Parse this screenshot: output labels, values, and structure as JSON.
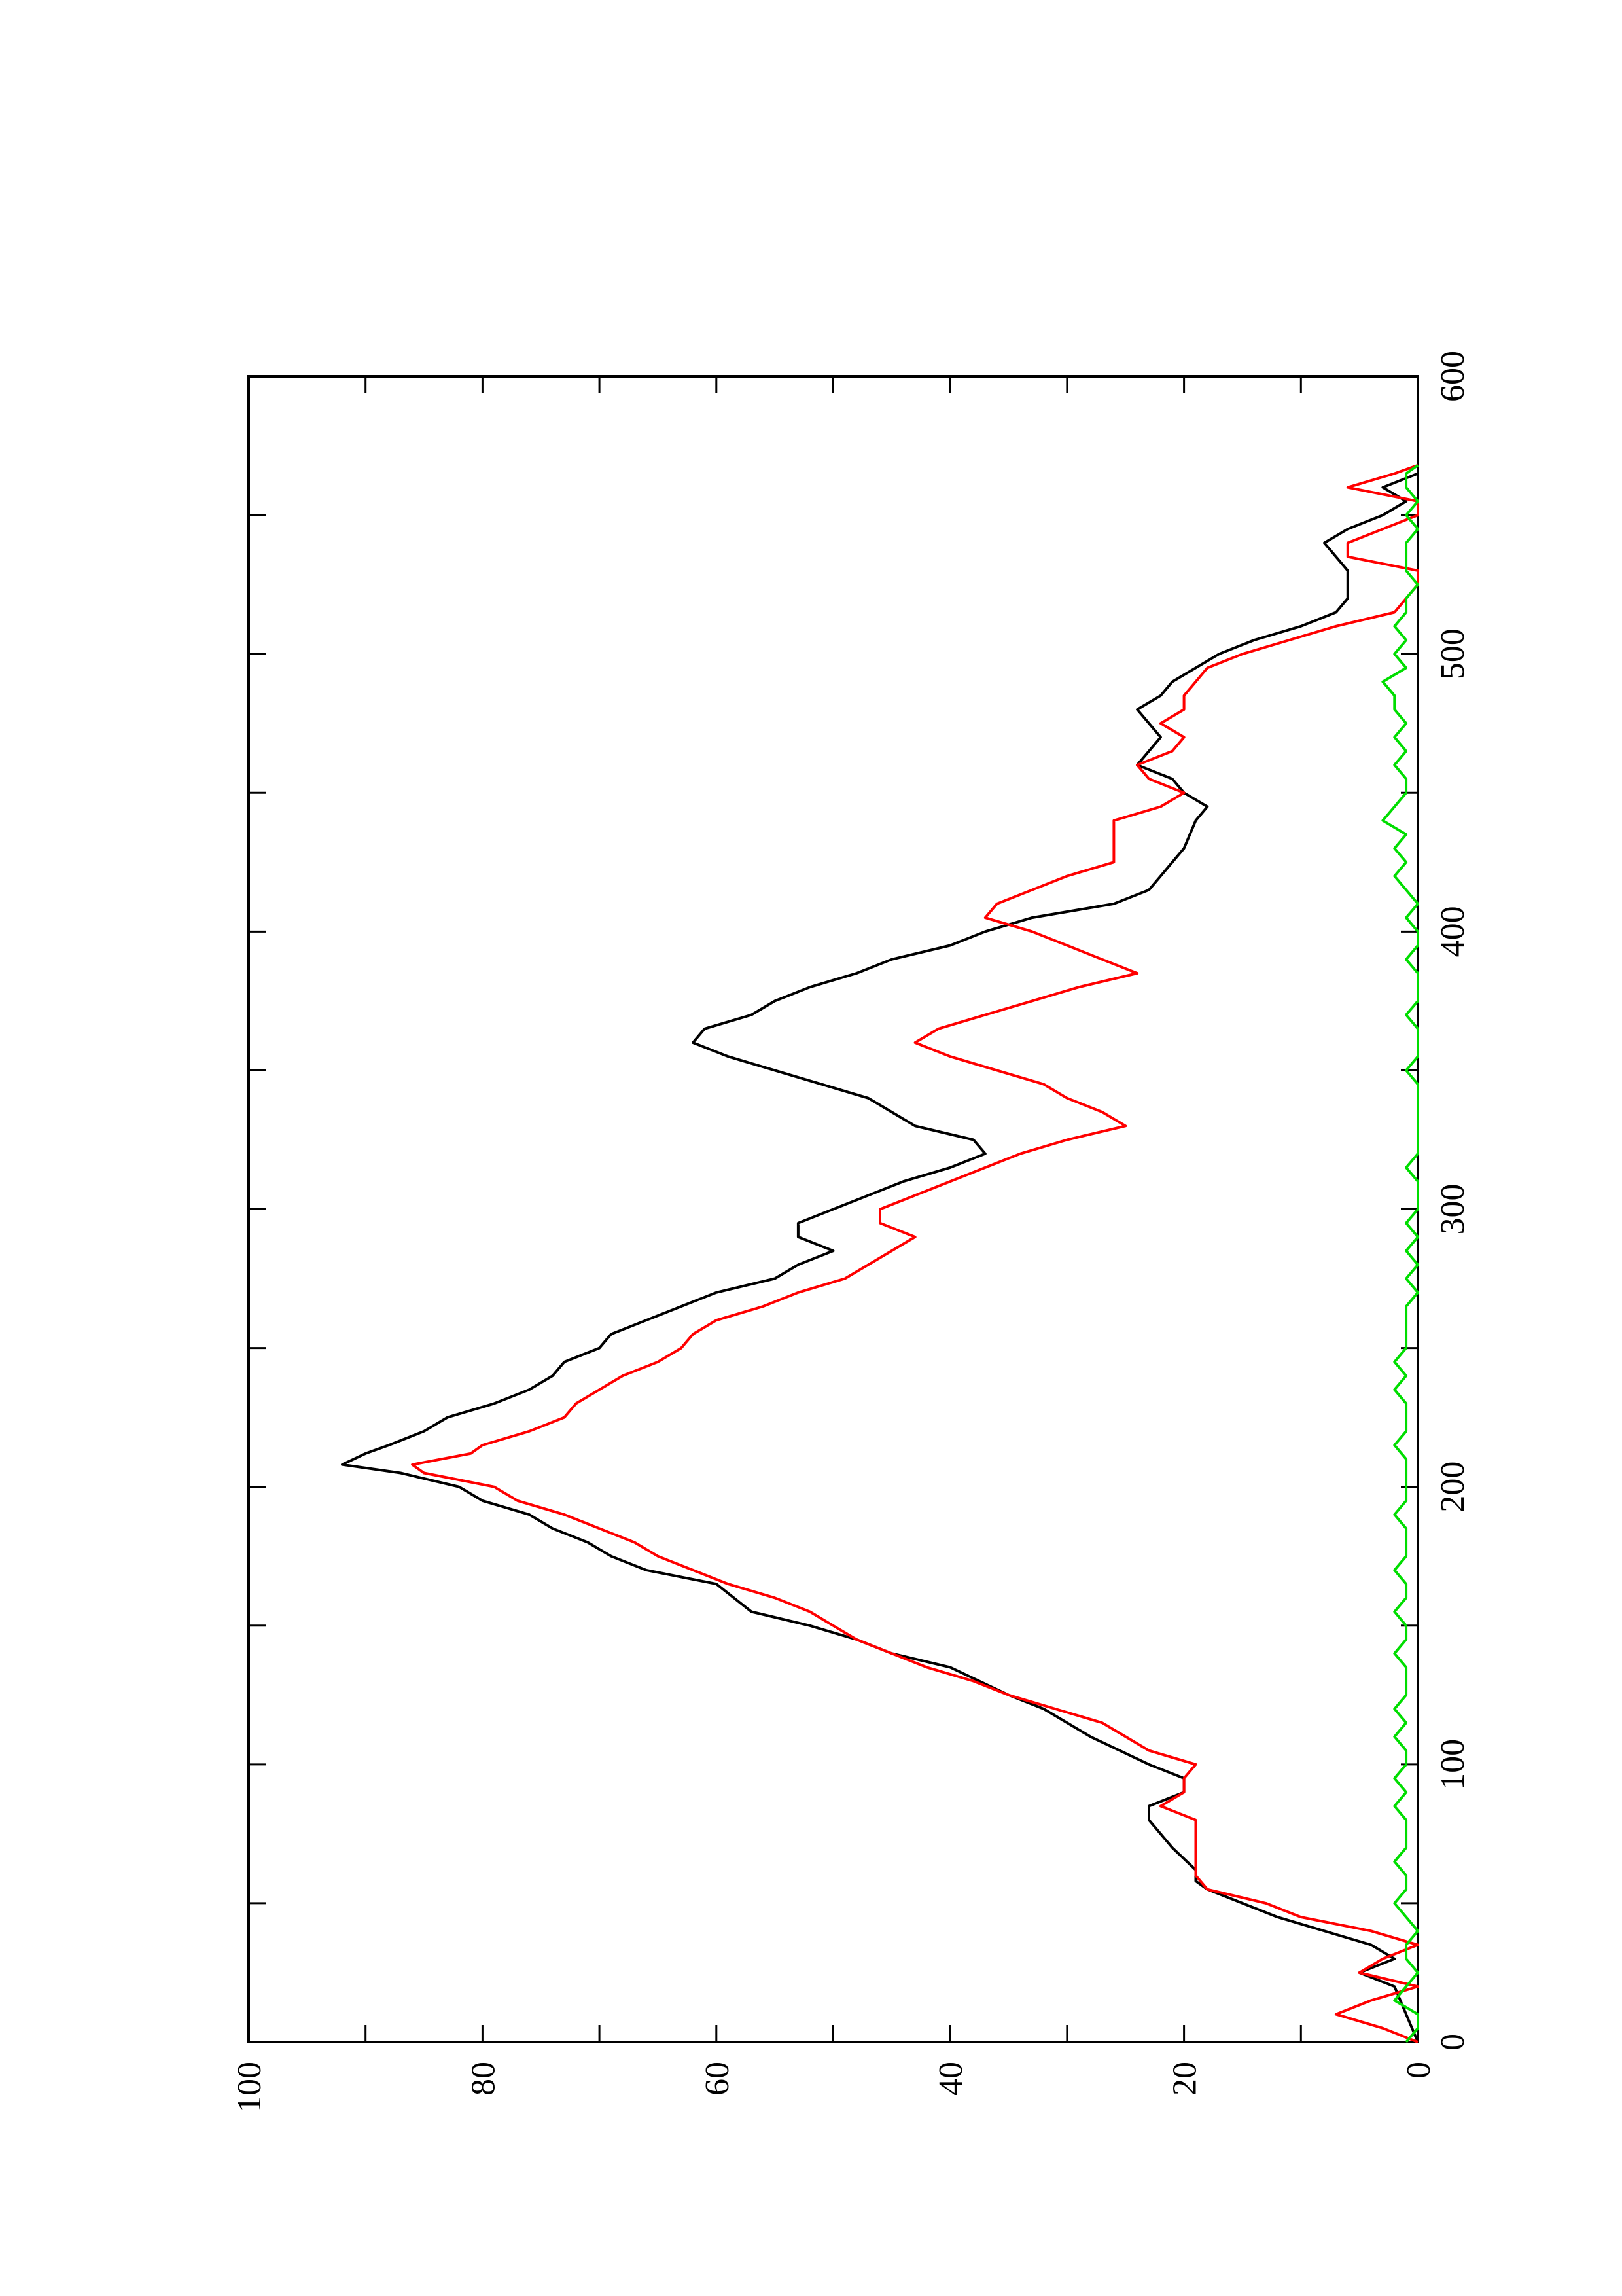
{
  "chart_data": {
    "type": "line",
    "orientation": "rotated-90-ccw",
    "title": "",
    "xlabel": "",
    "ylabel": "",
    "xlim": [
      0,
      600
    ],
    "ylim": [
      0,
      100
    ],
    "x_ticks": [
      "0",
      "100",
      "200",
      "300",
      "400",
      "500",
      "600"
    ],
    "y_ticks": [
      "0",
      "20",
      "40",
      "60",
      "80",
      "100"
    ],
    "grid": false,
    "legend": "none",
    "series": [
      {
        "color": "#000000",
        "points": [
          [
            0,
            0
          ],
          [
            10,
            1
          ],
          [
            20,
            2
          ],
          [
            25,
            5
          ],
          [
            30,
            2
          ],
          [
            35,
            4
          ],
          [
            45,
            12
          ],
          [
            55,
            18
          ],
          [
            58,
            19
          ],
          [
            62,
            19
          ],
          [
            70,
            21
          ],
          [
            80,
            23
          ],
          [
            85,
            23
          ],
          [
            90,
            20
          ],
          [
            95,
            20
          ],
          [
            100,
            23
          ],
          [
            110,
            28
          ],
          [
            120,
            32
          ],
          [
            125,
            35
          ],
          [
            135,
            40
          ],
          [
            140,
            45
          ],
          [
            145,
            48
          ],
          [
            150,
            52
          ],
          [
            155,
            57
          ],
          [
            165,
            60
          ],
          [
            170,
            66
          ],
          [
            175,
            69
          ],
          [
            180,
            71
          ],
          [
            185,
            74
          ],
          [
            190,
            76
          ],
          [
            195,
            80
          ],
          [
            200,
            82
          ],
          [
            205,
            87
          ],
          [
            208,
            92
          ],
          [
            212,
            90
          ],
          [
            215,
            88
          ],
          [
            220,
            85
          ],
          [
            225,
            83
          ],
          [
            230,
            79
          ],
          [
            235,
            76
          ],
          [
            240,
            74
          ],
          [
            245,
            73
          ],
          [
            250,
            70
          ],
          [
            255,
            69
          ],
          [
            260,
            66
          ],
          [
            265,
            63
          ],
          [
            270,
            60
          ],
          [
            275,
            55
          ],
          [
            280,
            53
          ],
          [
            285,
            50
          ],
          [
            290,
            53
          ],
          [
            295,
            53
          ],
          [
            300,
            50
          ],
          [
            305,
            47
          ],
          [
            310,
            44
          ],
          [
            315,
            40
          ],
          [
            320,
            37
          ],
          [
            325,
            38
          ],
          [
            330,
            43
          ],
          [
            335,
            45
          ],
          [
            340,
            47
          ],
          [
            345,
            51
          ],
          [
            350,
            55
          ],
          [
            355,
            59
          ],
          [
            360,
            62
          ],
          [
            365,
            61
          ],
          [
            370,
            57
          ],
          [
            375,
            55
          ],
          [
            380,
            52
          ],
          [
            385,
            48
          ],
          [
            390,
            45
          ],
          [
            395,
            40
          ],
          [
            400,
            37
          ],
          [
            405,
            33
          ],
          [
            410,
            26
          ],
          [
            415,
            23
          ],
          [
            420,
            22
          ],
          [
            425,
            21
          ],
          [
            430,
            20
          ],
          [
            440,
            19
          ],
          [
            445,
            18
          ],
          [
            450,
            20
          ],
          [
            455,
            21
          ],
          [
            460,
            24
          ],
          [
            465,
            23
          ],
          [
            470,
            22
          ],
          [
            475,
            23
          ],
          [
            480,
            24
          ],
          [
            485,
            22
          ],
          [
            490,
            21
          ],
          [
            495,
            19
          ],
          [
            500,
            17
          ],
          [
            505,
            14
          ],
          [
            510,
            10
          ],
          [
            515,
            7
          ],
          [
            520,
            6
          ],
          [
            525,
            6
          ],
          [
            530,
            6
          ],
          [
            535,
            7
          ],
          [
            540,
            8
          ],
          [
            545,
            6
          ],
          [
            550,
            3
          ],
          [
            555,
            1
          ],
          [
            560,
            3
          ],
          [
            565,
            0
          ],
          [
            568,
            0
          ]
        ]
      },
      {
        "color": "#ff0000",
        "points": [
          [
            0,
            0
          ],
          [
            5,
            3
          ],
          [
            10,
            7
          ],
          [
            15,
            4
          ],
          [
            20,
            0
          ],
          [
            25,
            5
          ],
          [
            30,
            3
          ],
          [
            35,
            0
          ],
          [
            40,
            4
          ],
          [
            45,
            10
          ],
          [
            50,
            13
          ],
          [
            55,
            18
          ],
          [
            60,
            19
          ],
          [
            65,
            19
          ],
          [
            70,
            19
          ],
          [
            75,
            19
          ],
          [
            80,
            19
          ],
          [
            85,
            22
          ],
          [
            90,
            20
          ],
          [
            95,
            20
          ],
          [
            100,
            19
          ],
          [
            105,
            23
          ],
          [
            110,
            25
          ],
          [
            115,
            27
          ],
          [
            120,
            31
          ],
          [
            125,
            35
          ],
          [
            130,
            38
          ],
          [
            135,
            42
          ],
          [
            140,
            45
          ],
          [
            145,
            48
          ],
          [
            150,
            50
          ],
          [
            155,
            52
          ],
          [
            160,
            55
          ],
          [
            165,
            59
          ],
          [
            170,
            62
          ],
          [
            175,
            65
          ],
          [
            180,
            67
          ],
          [
            185,
            70
          ],
          [
            190,
            73
          ],
          [
            195,
            77
          ],
          [
            200,
            79
          ],
          [
            205,
            85
          ],
          [
            208,
            86
          ],
          [
            212,
            81
          ],
          [
            215,
            80
          ],
          [
            220,
            76
          ],
          [
            225,
            73
          ],
          [
            230,
            72
          ],
          [
            235,
            70
          ],
          [
            240,
            68
          ],
          [
            245,
            65
          ],
          [
            250,
            63
          ],
          [
            255,
            62
          ],
          [
            260,
            60
          ],
          [
            265,
            56
          ],
          [
            270,
            53
          ],
          [
            275,
            49
          ],
          [
            280,
            47
          ],
          [
            285,
            45
          ],
          [
            290,
            43
          ],
          [
            295,
            46
          ],
          [
            300,
            46
          ],
          [
            305,
            43
          ],
          [
            310,
            40
          ],
          [
            315,
            37
          ],
          [
            320,
            34
          ],
          [
            325,
            30
          ],
          [
            330,
            25
          ],
          [
            335,
            27
          ],
          [
            340,
            30
          ],
          [
            345,
            32
          ],
          [
            350,
            36
          ],
          [
            355,
            40
          ],
          [
            360,
            43
          ],
          [
            365,
            41
          ],
          [
            370,
            37
          ],
          [
            375,
            33
          ],
          [
            380,
            29
          ],
          [
            385,
            24
          ],
          [
            390,
            27
          ],
          [
            395,
            30
          ],
          [
            400,
            33
          ],
          [
            405,
            37
          ],
          [
            410,
            36
          ],
          [
            415,
            33
          ],
          [
            420,
            30
          ],
          [
            425,
            26
          ],
          [
            430,
            26
          ],
          [
            435,
            26
          ],
          [
            440,
            26
          ],
          [
            445,
            22
          ],
          [
            450,
            20
          ],
          [
            455,
            23
          ],
          [
            460,
            24
          ],
          [
            465,
            21
          ],
          [
            470,
            20
          ],
          [
            475,
            22
          ],
          [
            480,
            20
          ],
          [
            485,
            20
          ],
          [
            490,
            19
          ],
          [
            495,
            18
          ],
          [
            500,
            15
          ],
          [
            505,
            11
          ],
          [
            510,
            7
          ],
          [
            515,
            2
          ],
          [
            520,
            1
          ],
          [
            525,
            0
          ],
          [
            530,
            0
          ],
          [
            535,
            6
          ],
          [
            540,
            6
          ],
          [
            545,
            3
          ],
          [
            550,
            0
          ],
          [
            555,
            0
          ],
          [
            560,
            6
          ],
          [
            565,
            2
          ],
          [
            568,
            0
          ]
        ]
      },
      {
        "color": "#00dd00",
        "points": [
          [
            0,
            1
          ],
          [
            5,
            0
          ],
          [
            10,
            0
          ],
          [
            15,
            2
          ],
          [
            20,
            1
          ],
          [
            25,
            0
          ],
          [
            30,
            1
          ],
          [
            35,
            1
          ],
          [
            40,
            0
          ],
          [
            45,
            1
          ],
          [
            50,
            2
          ],
          [
            55,
            1
          ],
          [
            60,
            1
          ],
          [
            65,
            2
          ],
          [
            70,
            1
          ],
          [
            75,
            1
          ],
          [
            80,
            1
          ],
          [
            85,
            2
          ],
          [
            90,
            1
          ],
          [
            95,
            2
          ],
          [
            100,
            1
          ],
          [
            105,
            1
          ],
          [
            110,
            2
          ],
          [
            115,
            1
          ],
          [
            120,
            2
          ],
          [
            125,
            1
          ],
          [
            130,
            1
          ],
          [
            135,
            1
          ],
          [
            140,
            2
          ],
          [
            145,
            1
          ],
          [
            150,
            1
          ],
          [
            155,
            2
          ],
          [
            160,
            1
          ],
          [
            165,
            1
          ],
          [
            170,
            2
          ],
          [
            175,
            1
          ],
          [
            180,
            1
          ],
          [
            185,
            1
          ],
          [
            190,
            2
          ],
          [
            195,
            1
          ],
          [
            200,
            1
          ],
          [
            205,
            1
          ],
          [
            210,
            1
          ],
          [
            215,
            2
          ],
          [
            220,
            1
          ],
          [
            225,
            1
          ],
          [
            230,
            1
          ],
          [
            235,
            2
          ],
          [
            240,
            1
          ],
          [
            245,
            2
          ],
          [
            250,
            1
          ],
          [
            255,
            1
          ],
          [
            260,
            1
          ],
          [
            265,
            1
          ],
          [
            270,
            0
          ],
          [
            275,
            1
          ],
          [
            280,
            0
          ],
          [
            285,
            1
          ],
          [
            290,
            0
          ],
          [
            295,
            1
          ],
          [
            300,
            0
          ],
          [
            305,
            0
          ],
          [
            310,
            0
          ],
          [
            315,
            1
          ],
          [
            320,
            0
          ],
          [
            325,
            0
          ],
          [
            330,
            0
          ],
          [
            335,
            0
          ],
          [
            340,
            0
          ],
          [
            345,
            0
          ],
          [
            350,
            1
          ],
          [
            355,
            0
          ],
          [
            360,
            0
          ],
          [
            365,
            0
          ],
          [
            370,
            1
          ],
          [
            375,
            0
          ],
          [
            380,
            0
          ],
          [
            385,
            0
          ],
          [
            390,
            1
          ],
          [
            395,
            0
          ],
          [
            400,
            0
          ],
          [
            405,
            1
          ],
          [
            410,
            0
          ],
          [
            415,
            1
          ],
          [
            420,
            2
          ],
          [
            425,
            1
          ],
          [
            430,
            2
          ],
          [
            435,
            1
          ],
          [
            440,
            3
          ],
          [
            445,
            2
          ],
          [
            450,
            1
          ],
          [
            455,
            1
          ],
          [
            460,
            2
          ],
          [
            465,
            1
          ],
          [
            470,
            2
          ],
          [
            475,
            1
          ],
          [
            480,
            2
          ],
          [
            485,
            2
          ],
          [
            490,
            3
          ],
          [
            495,
            1
          ],
          [
            500,
            2
          ],
          [
            505,
            1
          ],
          [
            510,
            2
          ],
          [
            515,
            1
          ],
          [
            520,
            1
          ],
          [
            525,
            0
          ],
          [
            530,
            1
          ],
          [
            535,
            1
          ],
          [
            540,
            1
          ],
          [
            545,
            0
          ],
          [
            550,
            1
          ],
          [
            555,
            0
          ],
          [
            560,
            1
          ],
          [
            565,
            1
          ],
          [
            568,
            0
          ]
        ]
      }
    ]
  }
}
